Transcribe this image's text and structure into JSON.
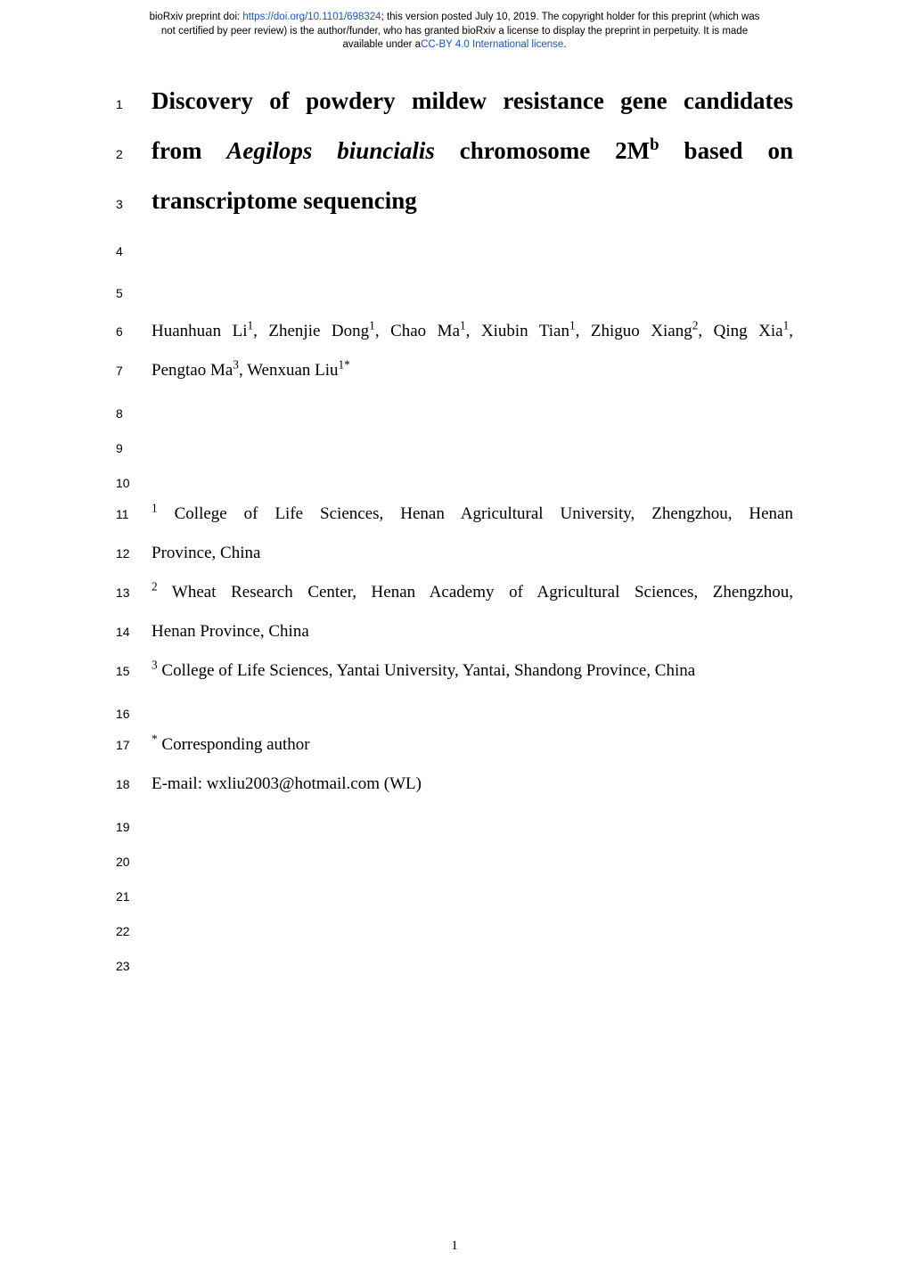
{
  "banner": {
    "line1_pre": "bioRxiv preprint doi: ",
    "doi_url": "https://doi.org/10.1101/698324",
    "line1_post": "; this version posted July 10, 2019. The copyright holder for this preprint (which was",
    "line2": "not certified by peer review) is the author/funder, who has granted bioRxiv a license to display the preprint in perpetuity. It is made",
    "line3_pre": "available under a",
    "license_text": "CC-BY 4.0 International license",
    "line3_post": "."
  },
  "title": {
    "l1": "Discovery of powdery mildew resistance gene candidates",
    "l2_pre": "from ",
    "l2_it": "Aegilops biuncialis",
    "l2_mid": " chromosome 2M",
    "l2_sup": "b",
    "l2_post": " based on",
    "l3": "transcriptome sequencing"
  },
  "authors": {
    "l1_parts": [
      {
        "t": "Huanhuan Li",
        "s": "1"
      },
      {
        "t": ", Zhenjie Dong",
        "s": "1"
      },
      {
        "t": ", Chao Ma",
        "s": "1"
      },
      {
        "t": ", Xiubin Tian",
        "s": "1"
      },
      {
        "t": ", Zhiguo Xiang",
        "s": "2"
      },
      {
        "t": ", Qing Xia",
        "s": "1"
      },
      {
        "t": ",",
        "s": ""
      }
    ],
    "l2_a": "Pengtao Ma",
    "l2_a_sup": "3",
    "l2_b": ", Wenxuan Liu",
    "l2_b_sup": "1*"
  },
  "affil": {
    "a1_sup": "1",
    "a1_l1": " College of Life Sciences, Henan Agricultural University, Zhengzhou, Henan",
    "a1_l2": "Province, China",
    "a2_sup": "2",
    "a2_l1": " Wheat Research Center, Henan Academy of Agricultural Sciences, Zhengzhou,",
    "a2_l2": "Henan Province, China",
    "a3_sup": "3",
    "a3": " College of Life Sciences, Yantai University, Yantai, Shandong Province, China"
  },
  "corr": {
    "star": "*",
    "label": " Corresponding author",
    "email": "E-mail: wxliu2003@hotmail.com (WL)"
  },
  "linenums": [
    "1",
    "2",
    "3",
    "4",
    "5",
    "6",
    "7",
    "8",
    "9",
    "10",
    "11",
    "12",
    "13",
    "14",
    "15",
    "16",
    "17",
    "18",
    "19",
    "20",
    "21",
    "22",
    "23"
  ],
  "pagenum": "1",
  "colors": {
    "link": "#1155cc",
    "text": "#000000",
    "bg": "#ffffff"
  },
  "fonts": {
    "banner_size": 11.5,
    "title_size": 27,
    "body_size": 19,
    "linenum_size": 14
  }
}
